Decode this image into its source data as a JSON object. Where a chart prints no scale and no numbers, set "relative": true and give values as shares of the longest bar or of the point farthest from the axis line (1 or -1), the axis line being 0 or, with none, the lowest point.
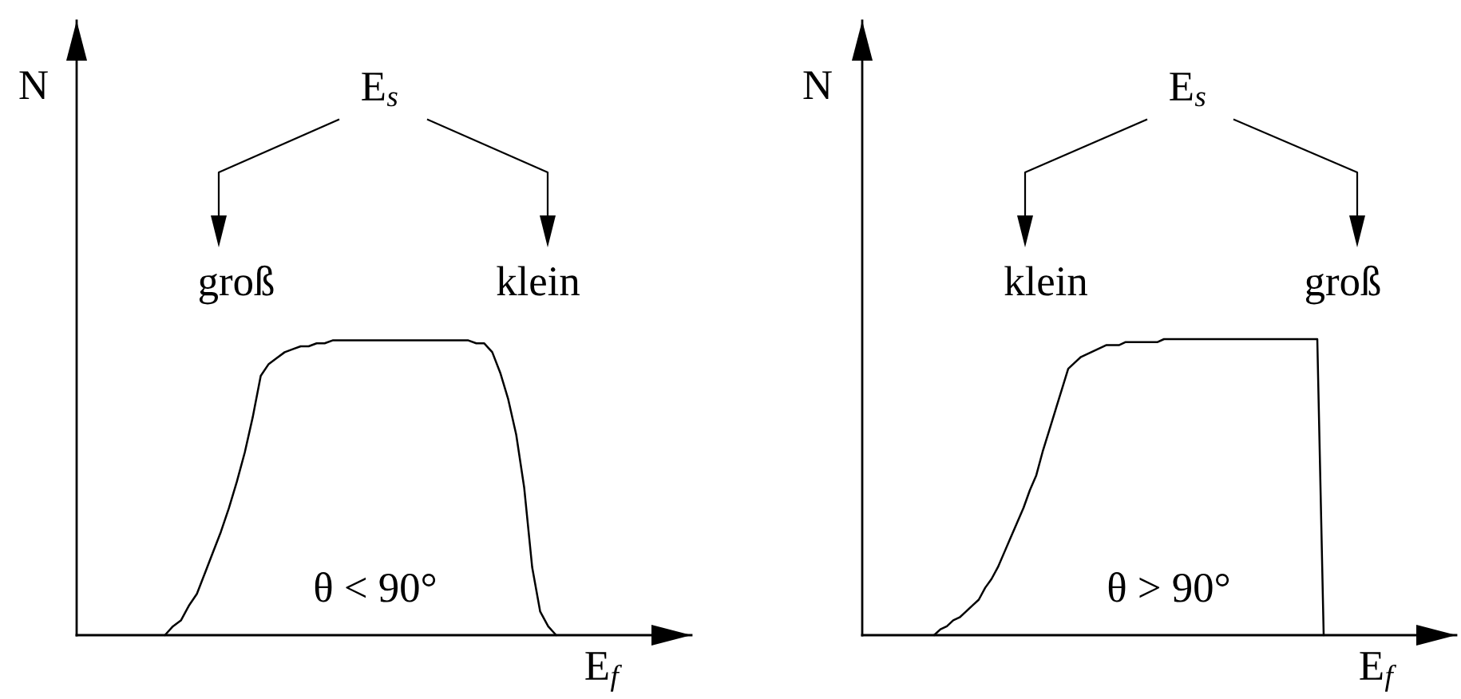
{
  "chart_data": [
    {
      "type": "line",
      "relative": true,
      "line_style": "solid",
      "xlabel": "E$_{f}$",
      "ylabel": "N",
      "categories": [
        null,
        null,
        null,
        null,
        null,
        null,
        null,
        null,
        null,
        null,
        null,
        null,
        null,
        null,
        null,
        null,
        null,
        null,
        null,
        null,
        null,
        null,
        null,
        null,
        null,
        null,
        null,
        null,
        null,
        null,
        null,
        null,
        null,
        null,
        null,
        null,
        null,
        null,
        null,
        null,
        null,
        null,
        null,
        null,
        null,
        null,
        null,
        null,
        null,
        null
      ],
      "series": [
        {
          "color": "#000000",
          "values": [
            0,
            0.03,
            0.05,
            0.1,
            0.14,
            0.21,
            0.28,
            0.35,
            0.43,
            0.52,
            0.62,
            0.74,
            0.88,
            0.92,
            0.94,
            0.96,
            0.97,
            0.98,
            0.98,
            0.99,
            0.99,
            1,
            1,
            1,
            1,
            1,
            1,
            1,
            1,
            1,
            1,
            1,
            1,
            1,
            1,
            1,
            1,
            1,
            1,
            0.99,
            0.99,
            0.96,
            0.89,
            0.8,
            0.68,
            0.5,
            0.23,
            0.08,
            0.03,
            0
          ]
        }
      ],
      "annotations": [
        "E$_{s}$",
        "groß",
        "klein",
        "θ < 90°"
      ]
    },
    {
      "type": "line",
      "relative": true,
      "line_style": "solid",
      "xlabel": "E$_{f}$",
      "ylabel": "N",
      "categories": [
        null,
        null,
        null,
        null,
        null,
        null,
        null,
        null,
        null,
        null,
        null,
        null,
        null,
        null,
        null,
        null,
        null,
        null,
        null,
        null,
        null,
        null,
        null,
        null,
        null,
        null,
        null,
        null,
        null,
        null,
        null,
        null,
        null,
        null,
        null,
        null,
        null,
        null,
        null,
        null,
        null,
        null,
        null,
        null,
        null,
        null,
        null,
        null,
        null,
        null,
        null,
        null,
        null,
        null,
        null,
        null,
        null,
        null,
        null,
        null,
        null,
        null
      ],
      "series": [
        {
          "color": "#000000",
          "values": [
            0,
            0.02,
            0.03,
            0.05,
            0.06,
            0.08,
            0.1,
            0.12,
            0.16,
            0.19,
            0.23,
            0.28,
            0.33,
            0.38,
            0.43,
            0.49,
            0.54,
            0.62,
            0.69,
            0.76,
            0.83,
            0.9,
            0.92,
            0.94,
            0.95,
            0.96,
            0.97,
            0.98,
            0.98,
            0.98,
            0.99,
            0.99,
            0.99,
            0.99,
            0.99,
            0.99,
            1,
            1,
            1,
            1,
            1,
            1,
            1,
            1,
            1,
            1,
            1,
            1,
            1,
            1,
            1,
            1,
            1,
            1,
            1,
            1,
            1,
            1,
            1,
            1,
            1,
            0
          ]
        }
      ],
      "annotations": [
        "E$_{s}$",
        "klein",
        "groß",
        "θ > 90°"
      ]
    }
  ]
}
